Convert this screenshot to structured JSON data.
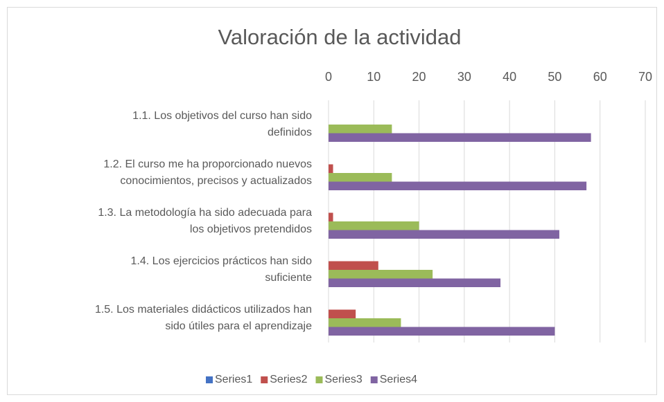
{
  "chart_data": {
    "type": "bar",
    "orientation": "horizontal",
    "title": "Valoración de la actividad",
    "categories": [
      [
        "1.1. Los objetivos del curso han sido",
        "definidos"
      ],
      [
        "1.2. El curso me ha proporcionado nuevos",
        "conocimientos, precisos y actualizados"
      ],
      [
        "1.3. La metodología ha sido adecuada para",
        "los objetivos pretendidos"
      ],
      [
        "1.4. Los ejercicios prácticos han sido",
        "suficiente"
      ],
      [
        "1.5. Los materiales didácticos utilizados han",
        "sido útiles para el aprendizaje"
      ]
    ],
    "series": [
      {
        "name": "Series1",
        "color": "#4472c4",
        "values": [
          0,
          0,
          0,
          0,
          0
        ]
      },
      {
        "name": "Series2",
        "color": "#c0504d",
        "values": [
          0,
          1,
          1,
          11,
          6
        ]
      },
      {
        "name": "Series3",
        "color": "#9bbb59",
        "values": [
          14,
          14,
          20,
          23,
          16
        ]
      },
      {
        "name": "Series4",
        "color": "#8064a2",
        "values": [
          58,
          57,
          51,
          38,
          50
        ]
      }
    ],
    "xlim": [
      0,
      70
    ],
    "xticks": [
      0,
      10,
      20,
      30,
      40,
      50,
      60,
      70
    ],
    "grid": true,
    "legend": "bottom"
  }
}
